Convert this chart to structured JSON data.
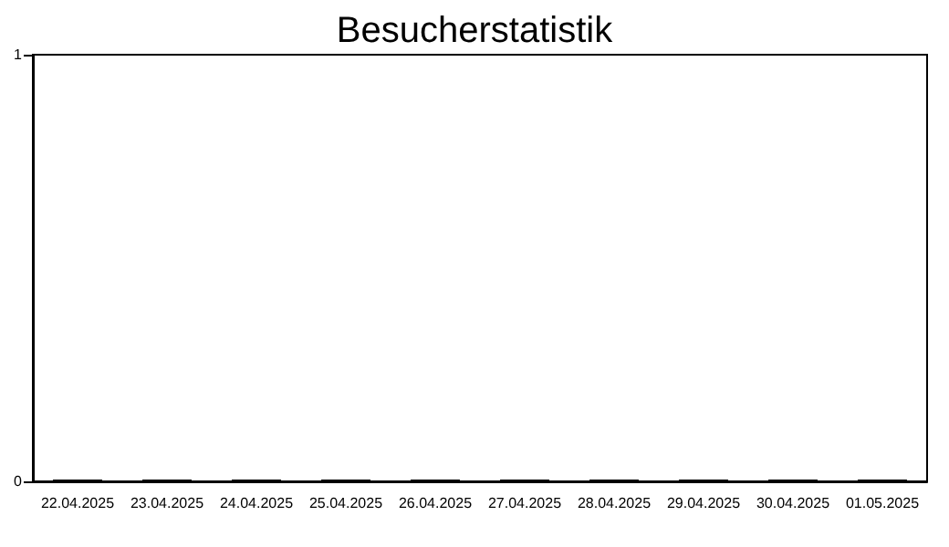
{
  "chart_data": {
    "type": "bar",
    "title": "Besucherstatistik",
    "categories": [
      "22.04.2025",
      "23.04.2025",
      "24.04.2025",
      "25.04.2025",
      "26.04.2025",
      "27.04.2025",
      "28.04.2025",
      "29.04.2025",
      "30.04.2025",
      "01.05.2025"
    ],
    "values": [
      0,
      0,
      0,
      0,
      0,
      0,
      0,
      0,
      0,
      0
    ],
    "color": "#000000",
    "ylim": [
      0,
      1
    ],
    "yticks": [
      0,
      1
    ],
    "grid": false
  }
}
